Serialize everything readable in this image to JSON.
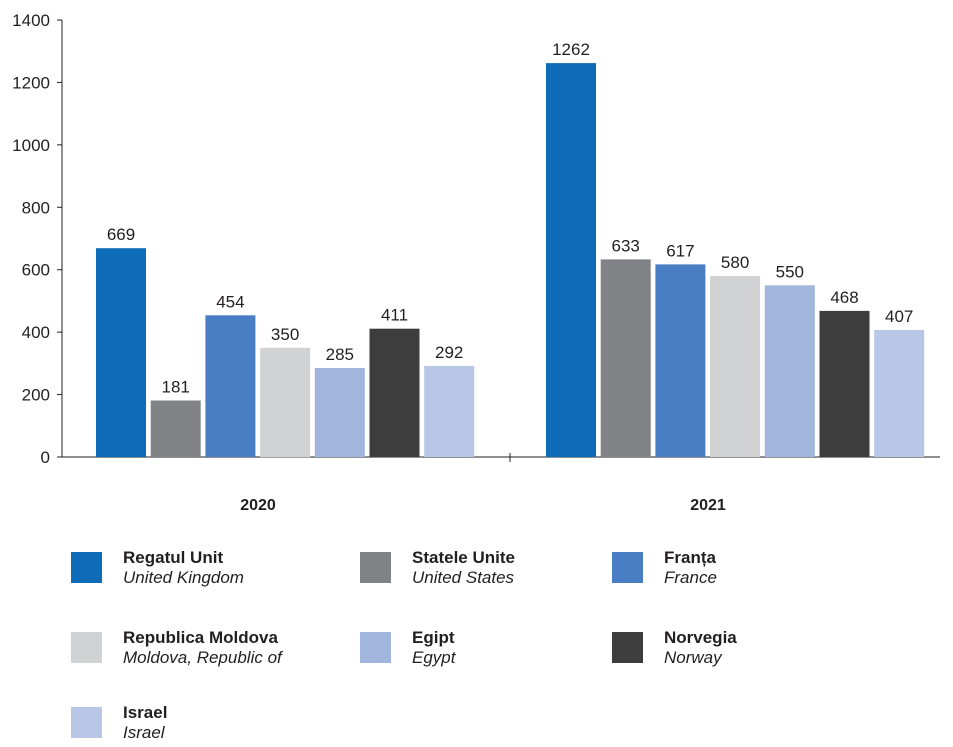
{
  "chart_data": {
    "type": "bar",
    "categories": [
      "2020",
      "2021"
    ],
    "ylim": [
      0,
      1400
    ],
    "yticks": [
      0,
      200,
      400,
      600,
      800,
      1000,
      1200,
      1400
    ],
    "grid": false,
    "legend_position": "bottom",
    "series": [
      {
        "name": "Regatul Unit",
        "name_en": "United Kingdom",
        "color": "#0e6bb7",
        "values": [
          669,
          1262
        ]
      },
      {
        "name": "Statele Unite",
        "name_en": "United States",
        "color": "#808285",
        "values": [
          181,
          633
        ]
      },
      {
        "name": "Franța",
        "name_en": "France",
        "color": "#4a7ec4",
        "values": [
          454,
          617
        ]
      },
      {
        "name": "Republica Moldova",
        "name_en": "Moldova, Republic of",
        "color": "#d1d2d4",
        "values": [
          350,
          580
        ]
      },
      {
        "name": "Egipt",
        "name_en": "Egypt",
        "color": "#a2b5dd",
        "values": [
          285,
          550
        ]
      },
      {
        "name": "Norvegia",
        "name_en": "Norway",
        "color": "#3d3d3e",
        "values": [
          411,
          468
        ]
      },
      {
        "name": "Israel",
        "name_en": "Israel",
        "color": "#b8c7e6",
        "values": [
          292,
          407
        ]
      }
    ]
  }
}
